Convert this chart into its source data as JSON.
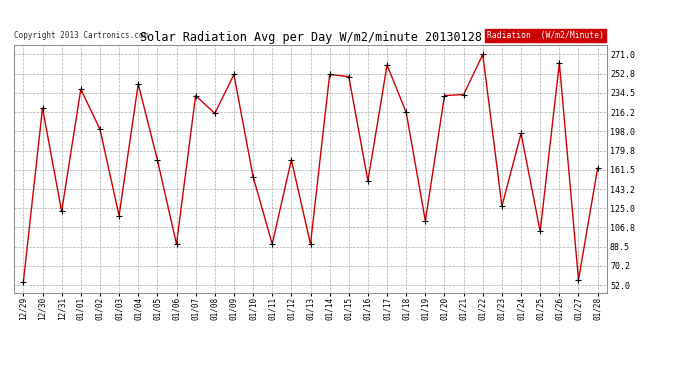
{
  "title": "Solar Radiation Avg per Day W/m2/minute 20130128",
  "copyright": "Copyright 2013 Cartronics.com",
  "legend_label": "Radiation  (W/m2/Minute)",
  "dates": [
    "12/29",
    "12/30",
    "12/31",
    "01/01",
    "01/02",
    "01/03",
    "01/04",
    "01/05",
    "01/06",
    "01/07",
    "01/08",
    "01/09",
    "01/10",
    "01/11",
    "01/12",
    "01/13",
    "01/14",
    "01/15",
    "01/16",
    "01/17",
    "01/18",
    "01/19",
    "01/20",
    "01/21",
    "01/22",
    "01/23",
    "01/24",
    "01/25",
    "01/26",
    "01/27",
    "01/28"
  ],
  "values": [
    55,
    220,
    122,
    238,
    200,
    118,
    243,
    171,
    91,
    232,
    215,
    252,
    155,
    91,
    171,
    91,
    252,
    250,
    151,
    261,
    216,
    113,
    232,
    233,
    271,
    127,
    196,
    103,
    263,
    57,
    163
  ],
  "line_color": "#cc0000",
  "marker_color": "#000000",
  "bg_color": "#ffffff",
  "plot_bg_color": "#ffffff",
  "grid_color": "#aaaaaa",
  "legend_bg": "#cc0000",
  "legend_text_color": "#ffffff",
  "title_fontsize": 9,
  "yticks": [
    52.0,
    70.2,
    88.5,
    106.8,
    125.0,
    143.2,
    161.5,
    179.8,
    198.0,
    216.2,
    234.5,
    252.8,
    271.0
  ],
  "ylim": [
    45,
    280
  ],
  "font_family": "monospace"
}
